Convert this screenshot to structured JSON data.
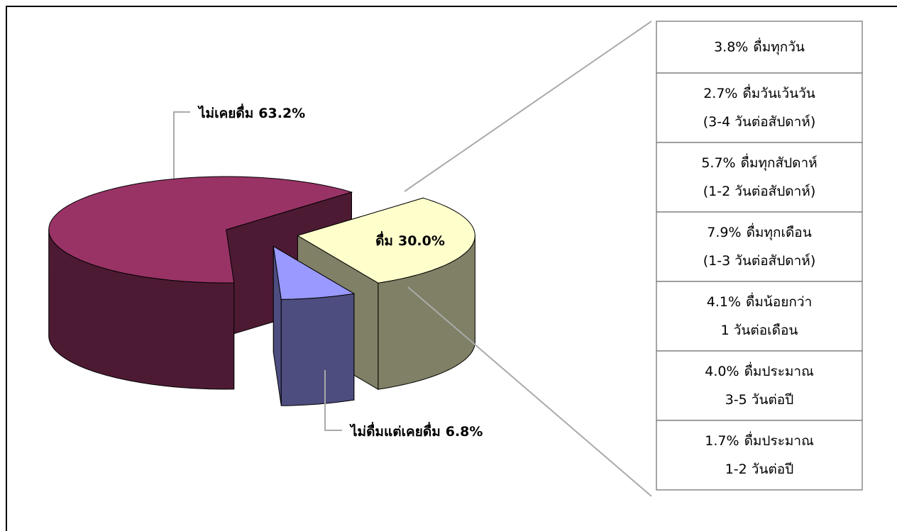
{
  "chart_data": {
    "type": "pie",
    "categories": [
      "ไม่เคยดื่ม",
      "ดื่ม",
      "ไม่ดื่มแต่เคยดื่ม"
    ],
    "values": [
      63.2,
      30.0,
      6.8
    ],
    "value_labels": [
      "63.2%",
      "30.0%",
      "6.8%"
    ],
    "colors": [
      "#993366",
      "#ffffcc",
      "#9999ff"
    ],
    "breakdown": {
      "values": [
        3.8,
        2.7,
        5.7,
        7.9,
        4.1,
        4.0,
        1.7
      ],
      "value_labels": [
        "3.8%",
        "2.7%",
        "5.7%",
        "7.9%",
        "4.1%",
        "4.0%",
        "1.7%"
      ],
      "labels": [
        [
          "ดื่มทุกวัน"
        ],
        [
          "ดื่มวันเว้นวัน",
          "(3-4  วันต่อสัปดาห์)"
        ],
        [
          "ดื่มทุกสัปดาห์",
          "(1-2  วันต่อสัปดาห์)"
        ],
        [
          "ดื่มทุกเดือน",
          "(1-3  วันต่อสัปดาห์)"
        ],
        [
          "ดื่มน้อยกว่า",
          "1 วันต่อเดือน"
        ],
        [
          "ดื่มประมาณ",
          "3-5 วันต่อปี"
        ],
        [
          "ดื่มประมาณ",
          "1-2 วันต่อปี"
        ]
      ]
    }
  }
}
